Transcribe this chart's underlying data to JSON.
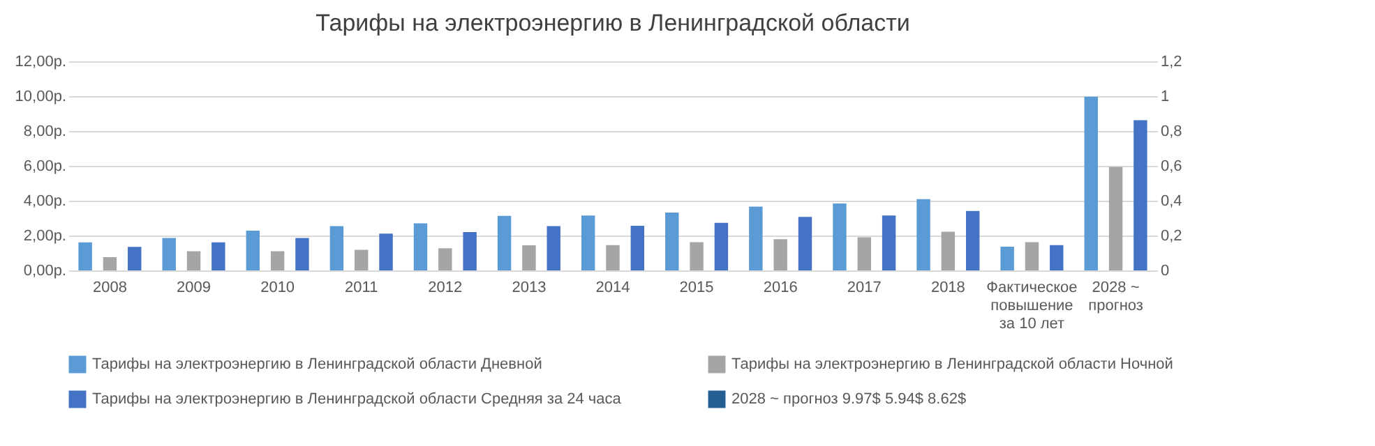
{
  "chart_data": {
    "type": "bar",
    "title": "Тарифы на электроэнергию в Ленинградской области",
    "categories": [
      "2008",
      "2009",
      "2010",
      "2011",
      "2012",
      "2013",
      "2014",
      "2015",
      "2016",
      "2017",
      "2018",
      "Фактическое повышение за 10 лет",
      "2028 ~ прогноз"
    ],
    "series": [
      {
        "name": "Тарифы на электроэнергию в Ленинградской области Дневной",
        "color": "#5b9bd5",
        "values": [
          1.61,
          1.86,
          2.28,
          2.54,
          2.7,
          3.13,
          3.15,
          3.32,
          3.66,
          3.84,
          4.09,
          1.36,
          9.97
        ]
      },
      {
        "name": "Тарифы на электроэнергию в Ленинградской области Ночной",
        "color": "#a5a5a5",
        "values": [
          0.76,
          1.1,
          1.1,
          1.18,
          1.27,
          1.44,
          1.45,
          1.62,
          1.79,
          1.9,
          2.22,
          1.62,
          5.94
        ]
      },
      {
        "name": "Тарифы на электроэнергию в Ленинградской области Средняя за 24 часа",
        "color": "#4472c4",
        "values": [
          1.35,
          1.61,
          1.86,
          2.11,
          2.2,
          2.54,
          2.56,
          2.73,
          3.07,
          3.15,
          3.41,
          1.45,
          8.62
        ]
      },
      {
        "name": "2028 ~ прогноз 9.97$ 5.94$ 8.62$",
        "color": "#255e91",
        "type": "line",
        "axis": "y2",
        "values": [
          null,
          null,
          null,
          null,
          null,
          null,
          null,
          null,
          null,
          null,
          null,
          null,
          null
        ]
      }
    ],
    "ylim": [
      0,
      12
    ],
    "yticks": [
      {
        "value": 0,
        "label": "0,00р."
      },
      {
        "value": 2,
        "label": "2,00р."
      },
      {
        "value": 4,
        "label": "4,00р."
      },
      {
        "value": 6,
        "label": "6,00р."
      },
      {
        "value": 8,
        "label": "8,00р."
      },
      {
        "value": 10,
        "label": "10,00р."
      },
      {
        "value": 12,
        "label": "12,00р."
      }
    ],
    "y2lim": [
      0,
      1.2
    ],
    "y2ticks": [
      0,
      {
        "value": 0.2,
        "label": "0,2"
      },
      {
        "value": 0.4,
        "label": "0,4"
      },
      {
        "value": 0.6,
        "label": "0,6"
      },
      {
        "value": 0.8,
        "label": "0,8"
      },
      1,
      {
        "value": 1.2,
        "label": "1,2"
      }
    ],
    "grid": "y",
    "legend": "bottom"
  }
}
